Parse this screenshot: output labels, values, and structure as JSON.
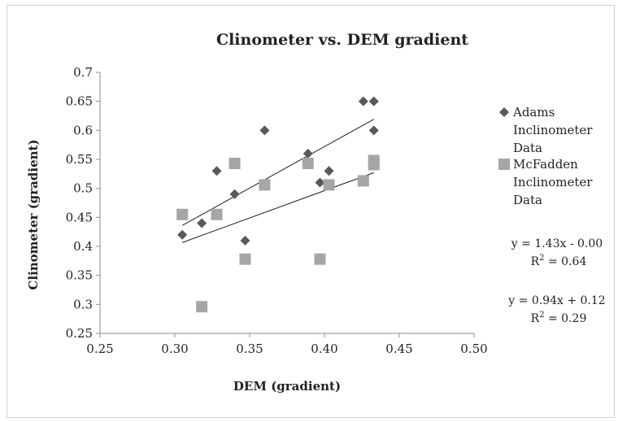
{
  "chart_data": {
    "type": "scatter",
    "title": "Clinometer vs. DEM gradient",
    "xlabel": "DEM (gradient)",
    "ylabel": "Clinometer (gradient)",
    "xlim": [
      0.25,
      0.5
    ],
    "ylim": [
      0.25,
      0.7
    ],
    "x_ticks": [
      "0.25",
      "0.30",
      "0.35",
      "0.40",
      "0.45",
      "0.50"
    ],
    "y_ticks": [
      "0.25",
      "0.3",
      "0.35",
      "0.4",
      "0.45",
      "0.5",
      "0.55",
      "0.6",
      "0.65",
      "0.7"
    ],
    "grid": false,
    "legend_position": "right",
    "series": [
      {
        "name": "Adams Inclinometer Data",
        "marker": "diamond",
        "color": "#595959",
        "points": [
          [
            0.305,
            0.42
          ],
          [
            0.318,
            0.44
          ],
          [
            0.328,
            0.53
          ],
          [
            0.34,
            0.49
          ],
          [
            0.347,
            0.41
          ],
          [
            0.36,
            0.6
          ],
          [
            0.389,
            0.56
          ],
          [
            0.397,
            0.51
          ],
          [
            0.403,
            0.53
          ],
          [
            0.426,
            0.65
          ],
          [
            0.433,
            0.65
          ],
          [
            0.433,
            0.6
          ]
        ],
        "trendline": {
          "slope": 1.43,
          "intercept": 0.0,
          "x_range": [
            0.305,
            0.433
          ]
        }
      },
      {
        "name": "McFadden Inclinometer Data",
        "marker": "square",
        "color": "#a6a6a6",
        "points": [
          [
            0.305,
            0.455
          ],
          [
            0.318,
            0.296
          ],
          [
            0.328,
            0.455
          ],
          [
            0.34,
            0.543
          ],
          [
            0.347,
            0.378
          ],
          [
            0.36,
            0.506
          ],
          [
            0.389,
            0.543
          ],
          [
            0.397,
            0.378
          ],
          [
            0.403,
            0.506
          ],
          [
            0.426,
            0.513
          ],
          [
            0.433,
            0.548
          ],
          [
            0.433,
            0.541
          ]
        ],
        "trendline": {
          "slope": 0.94,
          "intercept": 0.12,
          "x_range": [
            0.305,
            0.433
          ]
        }
      }
    ],
    "legend_labels": [
      [
        "Adams",
        "Inclinometer",
        "Data"
      ],
      [
        "McFadden",
        "Inclinometer",
        "Data"
      ]
    ],
    "annotations": [
      {
        "equation": "y = 1.43x - 0.00",
        "r2_label": "R",
        "r2_sup": "2",
        "r2_value": " = 0.64"
      },
      {
        "equation": "y = 0.94x + 0.12",
        "r2_label": "R",
        "r2_sup": "2",
        "r2_value": " = 0.29"
      }
    ]
  }
}
